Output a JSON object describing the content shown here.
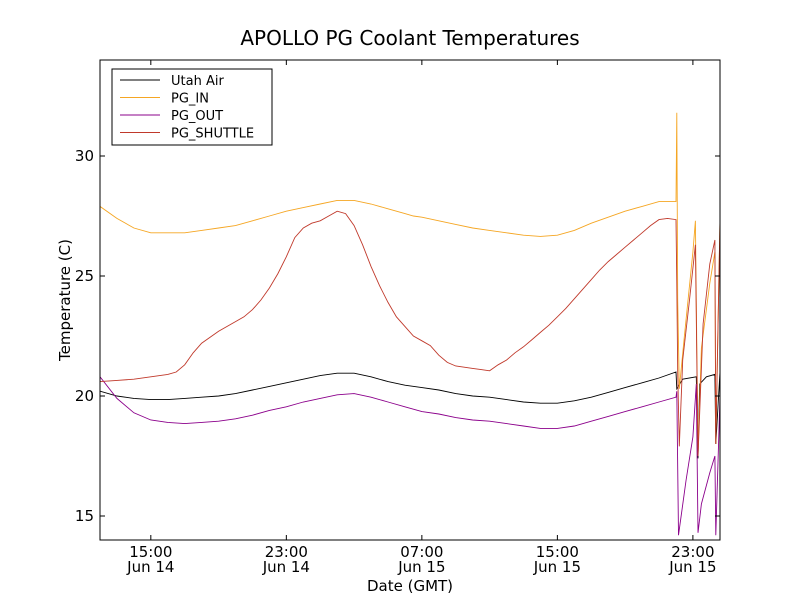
{
  "chart_data": {
    "type": "line",
    "title": "APOLLO PG Coolant Temperatures",
    "xlabel": "Date (GMT)",
    "ylabel": "Temperature (C)",
    "x_unit": "hours since Jun 14 11:00 GMT",
    "xlim": [
      0,
      36.6
    ],
    "ylim": [
      14,
      34
    ],
    "yticks": [
      15,
      20,
      25,
      30
    ],
    "xticks": [
      {
        "x": 3,
        "time": "15:00",
        "date": "Jun 14"
      },
      {
        "x": 11,
        "time": "23:00",
        "date": "Jun 14"
      },
      {
        "x": 19,
        "time": "07:00",
        "date": "Jun 15"
      },
      {
        "x": 27,
        "time": "15:00",
        "date": "Jun 15"
      },
      {
        "x": 35,
        "time": "23:00",
        "date": "Jun 15"
      }
    ],
    "legend_location": "top-left",
    "series": [
      {
        "name": "Utah Air",
        "color": "#000000",
        "points": [
          [
            0,
            20.2
          ],
          [
            1,
            20.0
          ],
          [
            2,
            19.9
          ],
          [
            3,
            19.85
          ],
          [
            4,
            19.85
          ],
          [
            5,
            19.9
          ],
          [
            6,
            19.95
          ],
          [
            7,
            20.0
          ],
          [
            8,
            20.1
          ],
          [
            9,
            20.25
          ],
          [
            10,
            20.4
          ],
          [
            11,
            20.55
          ],
          [
            12,
            20.7
          ],
          [
            13,
            20.85
          ],
          [
            14,
            20.95
          ],
          [
            15,
            20.95
          ],
          [
            16,
            20.8
          ],
          [
            17,
            20.6
          ],
          [
            18,
            20.45
          ],
          [
            19,
            20.35
          ],
          [
            20,
            20.25
          ],
          [
            21,
            20.1
          ],
          [
            22,
            20.0
          ],
          [
            23,
            19.95
          ],
          [
            24,
            19.85
          ],
          [
            25,
            19.75
          ],
          [
            26,
            19.7
          ],
          [
            27,
            19.7
          ],
          [
            28,
            19.8
          ],
          [
            29,
            19.95
          ],
          [
            30,
            20.15
          ],
          [
            31,
            20.35
          ],
          [
            32,
            20.55
          ],
          [
            33,
            20.75
          ],
          [
            34,
            21.0
          ],
          [
            34.05,
            20.3
          ],
          [
            34.4,
            20.7
          ],
          [
            35.2,
            20.8
          ],
          [
            35.3,
            17.4
          ],
          [
            35.4,
            20.5
          ],
          [
            35.8,
            20.8
          ],
          [
            36.3,
            20.9
          ],
          [
            36.35,
            18.0
          ],
          [
            36.6,
            21.0
          ]
        ]
      },
      {
        "name": "PG_IN",
        "color": "#f5a623",
        "points": [
          [
            0,
            27.9
          ],
          [
            1,
            27.4
          ],
          [
            2,
            27.0
          ],
          [
            3,
            26.8
          ],
          [
            4,
            26.8
          ],
          [
            5,
            26.8
          ],
          [
            6,
            26.9
          ],
          [
            7,
            27.0
          ],
          [
            8,
            27.1
          ],
          [
            9,
            27.3
          ],
          [
            10,
            27.5
          ],
          [
            11,
            27.7
          ],
          [
            12,
            27.85
          ],
          [
            13,
            28.0
          ],
          [
            14,
            28.15
          ],
          [
            15,
            28.15
          ],
          [
            16,
            28.0
          ],
          [
            17,
            27.8
          ],
          [
            18,
            27.6
          ],
          [
            18.5,
            27.5
          ],
          [
            19,
            27.45
          ],
          [
            20,
            27.3
          ],
          [
            21,
            27.15
          ],
          [
            22,
            27.0
          ],
          [
            23,
            26.9
          ],
          [
            24,
            26.8
          ],
          [
            25,
            26.7
          ],
          [
            26,
            26.65
          ],
          [
            27,
            26.7
          ],
          [
            28,
            26.9
          ],
          [
            29,
            27.2
          ],
          [
            30,
            27.45
          ],
          [
            31,
            27.7
          ],
          [
            32,
            27.9
          ],
          [
            33,
            28.1
          ],
          [
            34,
            28.1
          ],
          [
            34.05,
            31.8
          ],
          [
            34.1,
            24.0
          ],
          [
            34.2,
            20.3
          ],
          [
            34.5,
            22.5
          ],
          [
            35.0,
            26.0
          ],
          [
            35.15,
            27.3
          ],
          [
            35.3,
            17.6
          ],
          [
            35.5,
            22.0
          ],
          [
            36.0,
            24.7
          ],
          [
            36.3,
            26.0
          ],
          [
            36.35,
            18.0
          ],
          [
            36.6,
            27.3
          ]
        ]
      },
      {
        "name": "PG_OUT",
        "color": "#8b008b",
        "points": [
          [
            0,
            20.8
          ],
          [
            1,
            19.9
          ],
          [
            2,
            19.3
          ],
          [
            3,
            19.0
          ],
          [
            4,
            18.9
          ],
          [
            5,
            18.85
          ],
          [
            6,
            18.9
          ],
          [
            7,
            18.95
          ],
          [
            8,
            19.05
          ],
          [
            9,
            19.2
          ],
          [
            10,
            19.4
          ],
          [
            11,
            19.55
          ],
          [
            12,
            19.75
          ],
          [
            13,
            19.9
          ],
          [
            14,
            20.05
          ],
          [
            15,
            20.1
          ],
          [
            16,
            19.95
          ],
          [
            17,
            19.75
          ],
          [
            18,
            19.55
          ],
          [
            19,
            19.35
          ],
          [
            20,
            19.25
          ],
          [
            21,
            19.1
          ],
          [
            22,
            19.0
          ],
          [
            23,
            18.95
          ],
          [
            24,
            18.85
          ],
          [
            25,
            18.75
          ],
          [
            26,
            18.65
          ],
          [
            27,
            18.65
          ],
          [
            28,
            18.75
          ],
          [
            29,
            18.95
          ],
          [
            30,
            19.15
          ],
          [
            31,
            19.35
          ],
          [
            32,
            19.55
          ],
          [
            33,
            19.75
          ],
          [
            34,
            19.95
          ],
          [
            34.05,
            20.2
          ],
          [
            34.15,
            14.2
          ],
          [
            34.6,
            16.5
          ],
          [
            35.0,
            18.3
          ],
          [
            35.2,
            20.5
          ],
          [
            35.3,
            14.3
          ],
          [
            35.5,
            15.5
          ],
          [
            36.0,
            16.8
          ],
          [
            36.3,
            17.5
          ],
          [
            36.35,
            14.2
          ],
          [
            36.6,
            20.0
          ]
        ]
      },
      {
        "name": "PG_SHUTTLE",
        "color": "#c0392b",
        "points": [
          [
            0,
            20.6
          ],
          [
            1,
            20.65
          ],
          [
            2,
            20.7
          ],
          [
            3,
            20.8
          ],
          [
            4,
            20.9
          ],
          [
            4.5,
            21.0
          ],
          [
            5,
            21.3
          ],
          [
            5.5,
            21.8
          ],
          [
            6,
            22.2
          ],
          [
            7,
            22.7
          ],
          [
            8,
            23.1
          ],
          [
            8.5,
            23.3
          ],
          [
            9,
            23.6
          ],
          [
            9.5,
            24.0
          ],
          [
            10,
            24.5
          ],
          [
            10.5,
            25.1
          ],
          [
            11,
            25.8
          ],
          [
            11.5,
            26.6
          ],
          [
            12,
            27.0
          ],
          [
            12.5,
            27.2
          ],
          [
            13,
            27.3
          ],
          [
            13.5,
            27.5
          ],
          [
            14,
            27.7
          ],
          [
            14.5,
            27.6
          ],
          [
            15,
            27.1
          ],
          [
            15.5,
            26.3
          ],
          [
            16,
            25.4
          ],
          [
            16.5,
            24.6
          ],
          [
            17,
            23.9
          ],
          [
            17.5,
            23.3
          ],
          [
            18,
            22.9
          ],
          [
            18.5,
            22.5
          ],
          [
            19,
            22.3
          ],
          [
            19.5,
            22.1
          ],
          [
            20,
            21.7
          ],
          [
            20.5,
            21.4
          ],
          [
            21,
            21.25
          ],
          [
            21.5,
            21.2
          ],
          [
            22,
            21.15
          ],
          [
            22.5,
            21.1
          ],
          [
            23,
            21.05
          ],
          [
            23.5,
            21.3
          ],
          [
            24,
            21.5
          ],
          [
            24.5,
            21.8
          ],
          [
            25,
            22.05
          ],
          [
            25.5,
            22.35
          ],
          [
            26,
            22.65
          ],
          [
            26.5,
            22.95
          ],
          [
            27,
            23.3
          ],
          [
            27.5,
            23.65
          ],
          [
            28,
            24.05
          ],
          [
            28.5,
            24.45
          ],
          [
            29,
            24.85
          ],
          [
            29.5,
            25.25
          ],
          [
            30,
            25.6
          ],
          [
            30.5,
            25.9
          ],
          [
            31,
            26.2
          ],
          [
            31.5,
            26.5
          ],
          [
            32,
            26.8
          ],
          [
            32.5,
            27.1
          ],
          [
            33,
            27.35
          ],
          [
            33.5,
            27.4
          ],
          [
            34,
            27.35
          ],
          [
            34.05,
            24.7
          ],
          [
            34.1,
            21.0
          ],
          [
            34.2,
            17.9
          ],
          [
            34.4,
            21.5
          ],
          [
            34.8,
            24.0
          ],
          [
            35.15,
            26.3
          ],
          [
            35.3,
            17.5
          ],
          [
            35.6,
            23.0
          ],
          [
            36.0,
            25.5
          ],
          [
            36.3,
            26.5
          ],
          [
            36.35,
            18.0
          ],
          [
            36.6,
            27.3
          ]
        ]
      }
    ]
  }
}
